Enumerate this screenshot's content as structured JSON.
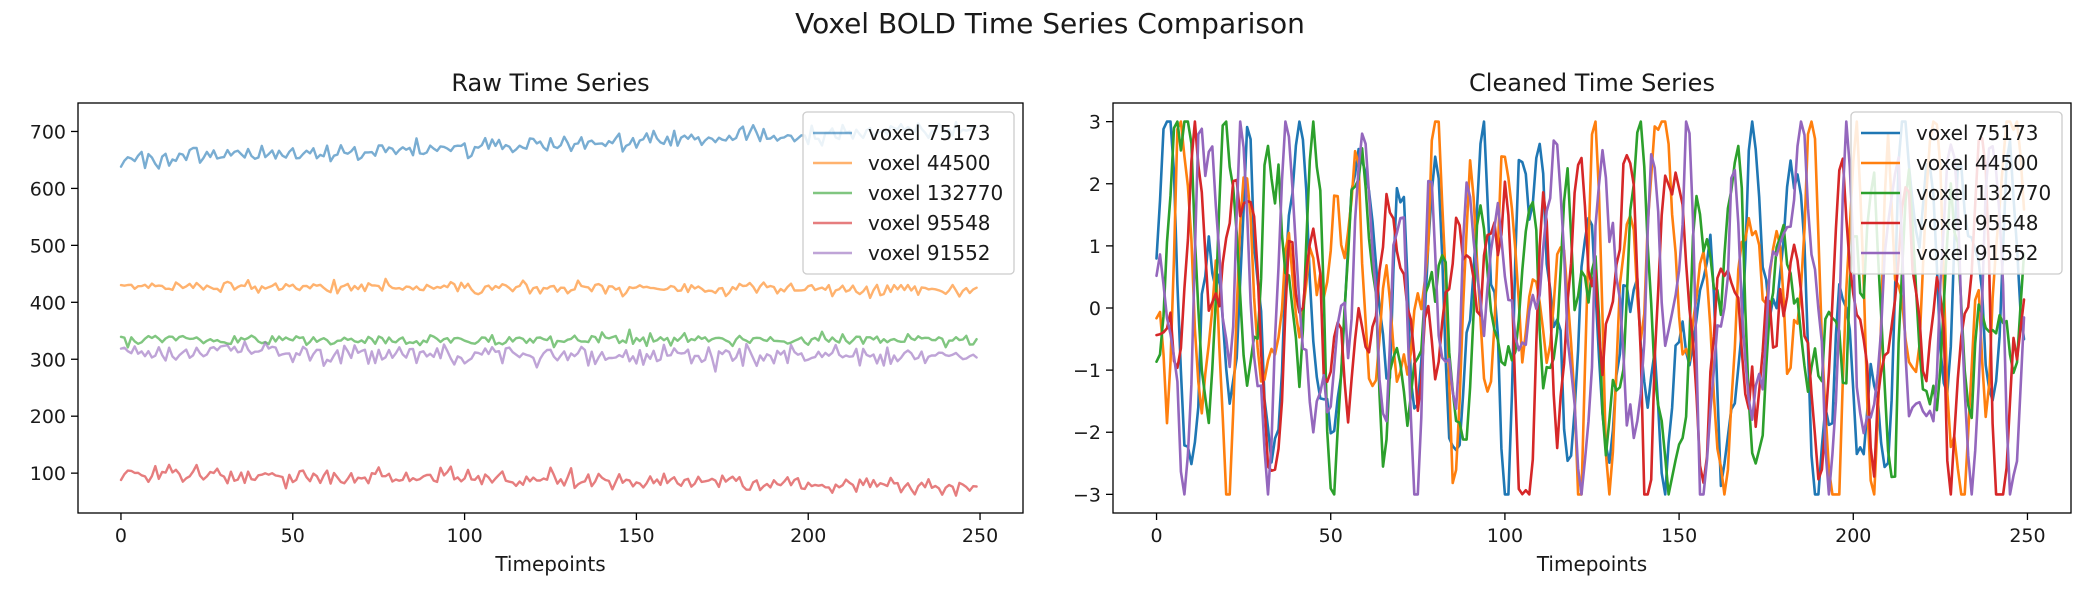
{
  "figure": {
    "title": "Voxel BOLD Time Series Comparison"
  },
  "chart_data": [
    {
      "type": "line",
      "title": "Raw Time Series",
      "xlabel": "Timepoints",
      "ylabel": "",
      "xlim": [
        -12.5,
        262.5
      ],
      "ylim": [
        30,
        750
      ],
      "xticks": [
        0,
        50,
        100,
        150,
        200,
        250
      ],
      "yticks": [
        100,
        200,
        300,
        400,
        500,
        600,
        700
      ],
      "grid": false,
      "legend_position": "top-right",
      "series_opacity": 0.6,
      "series": [
        {
          "name": "voxel 75173",
          "color": "#1f77b4",
          "mean_start": 650,
          "mean_end": 705,
          "noise": 8,
          "values": []
        },
        {
          "name": "voxel 44500",
          "color": "#ff7f0e",
          "mean_start": 428,
          "mean_end": 423,
          "noise": 5,
          "values": []
        },
        {
          "name": "voxel 132770",
          "color": "#2ca02c",
          "mean_start": 335,
          "mean_end": 333,
          "noise": 5,
          "values": []
        },
        {
          "name": "voxel 95548",
          "color": "#d62728",
          "mean_start": 100,
          "mean_end": 75,
          "noise": 8,
          "values": []
        },
        {
          "name": "voxel 91552",
          "color": "#9467bd",
          "mean_start": 310,
          "mean_end": 305,
          "noise": 9,
          "values": []
        }
      ]
    },
    {
      "type": "line",
      "title": "Cleaned Time Series",
      "xlabel": "Timepoints",
      "ylabel": "",
      "xlim": [
        -12.5,
        262.5
      ],
      "ylim": [
        -3.3,
        3.3
      ],
      "xticks": [
        0,
        50,
        100,
        150,
        200,
        250
      ],
      "yticks": [
        -3,
        -2,
        -1,
        0,
        1,
        2,
        3
      ],
      "grid": false,
      "legend_position": "top-right",
      "series_opacity": 1.0,
      "series": [
        {
          "name": "voxel 75173",
          "color": "#1f77b4",
          "amplitude": 1.2,
          "values": []
        },
        {
          "name": "voxel 44500",
          "color": "#ff7f0e",
          "amplitude": 1.2,
          "values": []
        },
        {
          "name": "voxel 132770",
          "color": "#2ca02c",
          "amplitude": 1.2,
          "values": []
        },
        {
          "name": "voxel 95548",
          "color": "#d62728",
          "amplitude": 1.2,
          "values": []
        },
        {
          "name": "voxel 91552",
          "color": "#9467bd",
          "amplitude": 1.2,
          "values": []
        }
      ]
    }
  ]
}
